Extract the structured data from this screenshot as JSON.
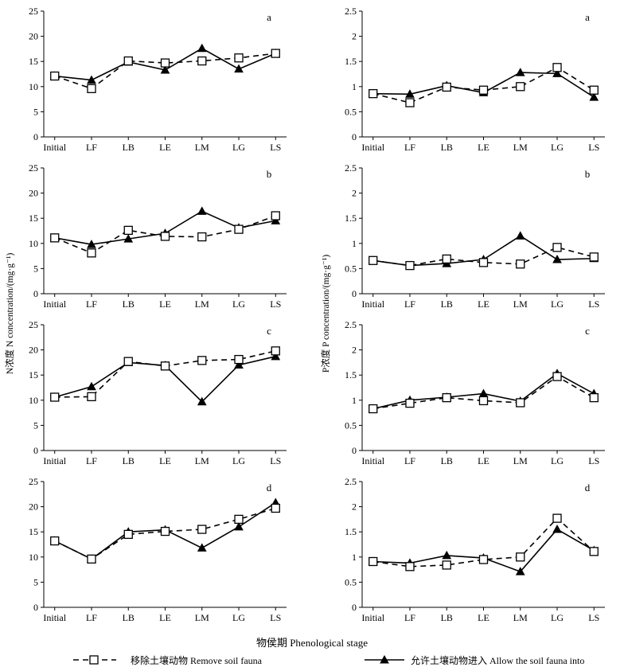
{
  "chart_data": [
    {
      "type": "line",
      "panel": "a",
      "element": "N",
      "title": "a",
      "ylim": [
        0,
        25
      ],
      "yticks": [
        0,
        5,
        10,
        15,
        20,
        25
      ],
      "categories": [
        "Initial",
        "LF",
        "LB",
        "LE",
        "LM",
        "LG",
        "LS"
      ],
      "series": [
        {
          "name": "移除土壤动物 Remove soil fauna",
          "values": [
            12.1,
            9.6,
            15.1,
            14.7,
            15.1,
            15.7,
            16.6
          ]
        },
        {
          "name": "允许土壤动物进入 Allow the soil fauna into",
          "values": [
            12.1,
            11.3,
            14.9,
            13.3,
            17.6,
            13.5,
            16.6
          ]
        }
      ]
    },
    {
      "type": "line",
      "panel": "a",
      "element": "P",
      "title": "a",
      "ylim": [
        0,
        2.5
      ],
      "yticks": [
        0,
        0.5,
        1.0,
        1.5,
        2.0,
        2.5
      ],
      "categories": [
        "Initial",
        "LF",
        "LB",
        "LE",
        "LM",
        "LG",
        "LS"
      ],
      "series": [
        {
          "name": "移除土壤动物 Remove soil fauna",
          "values": [
            0.86,
            0.68,
            0.99,
            0.93,
            1.0,
            1.38,
            0.93
          ]
        },
        {
          "name": "允许土壤动物进入 Allow the soil fauna into",
          "values": [
            0.86,
            0.85,
            1.02,
            0.88,
            1.28,
            1.26,
            0.79
          ]
        }
      ]
    },
    {
      "type": "line",
      "panel": "b",
      "element": "N",
      "title": "b",
      "ylim": [
        0,
        25
      ],
      "yticks": [
        0,
        5,
        10,
        15,
        20,
        25
      ],
      "categories": [
        "Initial",
        "LF",
        "LB",
        "LE",
        "LM",
        "LG",
        "LS"
      ],
      "series": [
        {
          "name": "移除土壤动物 Remove soil fauna",
          "values": [
            11.1,
            8.1,
            12.6,
            11.4,
            11.3,
            12.8,
            15.5
          ]
        },
        {
          "name": "允许土壤动物进入 Allow the soil fauna into",
          "values": [
            11.1,
            9.8,
            10.9,
            12.0,
            16.4,
            13.1,
            14.5
          ]
        }
      ]
    },
    {
      "type": "line",
      "panel": "b",
      "element": "P",
      "title": "b",
      "ylim": [
        0,
        2.5
      ],
      "yticks": [
        0,
        0.5,
        1.0,
        1.5,
        2.0,
        2.5
      ],
      "categories": [
        "Initial",
        "LF",
        "LB",
        "LE",
        "LM",
        "LG",
        "LS"
      ],
      "series": [
        {
          "name": "移除土壤动物 Remove soil fauna",
          "values": [
            0.66,
            0.56,
            0.69,
            0.62,
            0.59,
            0.92,
            0.73
          ]
        },
        {
          "name": "允许土壤动物进入 Allow the soil fauna into",
          "values": [
            0.66,
            0.56,
            0.6,
            0.68,
            1.15,
            0.68,
            0.7
          ]
        }
      ]
    },
    {
      "type": "line",
      "panel": "c",
      "element": "N",
      "title": "c",
      "ylim": [
        0,
        25
      ],
      "yticks": [
        0,
        5,
        10,
        15,
        20,
        25
      ],
      "categories": [
        "Initial",
        "LF",
        "LB",
        "LE",
        "LM",
        "LG",
        "LS"
      ],
      "series": [
        {
          "name": "移除土壤动物 Remove soil fauna",
          "values": [
            10.6,
            10.7,
            17.7,
            16.8,
            17.9,
            18.1,
            19.8
          ]
        },
        {
          "name": "允许土壤动物进入 Allow the soil fauna into",
          "values": [
            10.6,
            12.7,
            17.5,
            16.9,
            9.7,
            17.0,
            18.7
          ]
        }
      ]
    },
    {
      "type": "line",
      "panel": "c",
      "element": "P",
      "title": "c",
      "ylim": [
        0,
        2.5
      ],
      "yticks": [
        0,
        0.5,
        1.0,
        1.5,
        2.0,
        2.5
      ],
      "categories": [
        "Initial",
        "LF",
        "LB",
        "LE",
        "LM",
        "LG",
        "LS"
      ],
      "series": [
        {
          "name": "移除土壤动物 Remove soil fauna",
          "values": [
            0.83,
            0.94,
            1.05,
            0.99,
            0.95,
            1.47,
            1.05
          ]
        },
        {
          "name": "允许土壤动物进入 Allow the soil fauna into",
          "values": [
            0.83,
            1.0,
            1.06,
            1.13,
            0.98,
            1.53,
            1.13
          ]
        }
      ]
    },
    {
      "type": "line",
      "panel": "d",
      "element": "N",
      "title": "d",
      "ylim": [
        0,
        25
      ],
      "yticks": [
        0,
        5,
        10,
        15,
        20,
        25
      ],
      "categories": [
        "Initial",
        "LF",
        "LB",
        "LE",
        "LM",
        "LG",
        "LS"
      ],
      "series": [
        {
          "name": "移除土壤动物 Remove soil fauna",
          "values": [
            13.2,
            9.6,
            14.5,
            15.1,
            15.5,
            17.5,
            19.7
          ]
        },
        {
          "name": "允许土壤动物进入 Allow the soil fauna into",
          "values": [
            13.2,
            9.6,
            15.0,
            15.4,
            11.8,
            16.0,
            20.8
          ]
        }
      ]
    },
    {
      "type": "line",
      "panel": "d",
      "element": "P",
      "title": "d",
      "ylim": [
        0,
        2.5
      ],
      "yticks": [
        0,
        0.5,
        1.0,
        1.5,
        2.0,
        2.5
      ],
      "categories": [
        "Initial",
        "LF",
        "LB",
        "LE",
        "LM",
        "LG",
        "LS"
      ],
      "series": [
        {
          "name": "移除土壤动物 Remove soil fauna",
          "values": [
            0.91,
            0.81,
            0.84,
            0.95,
            1.0,
            1.77,
            1.11
          ]
        },
        {
          "name": "允许土壤动物进入 Allow the soil fauna into",
          "values": [
            0.91,
            0.88,
            1.03,
            0.98,
            0.71,
            1.55,
            1.13
          ]
        }
      ]
    }
  ],
  "labels": {
    "ylabel_n": "N浓度 N concentration/(mg·g⁻¹)",
    "ylabel_p": "P浓度 P concentration/(mg·g⁻¹)",
    "xlabel": "物侯期 Phenological stage"
  },
  "legend": {
    "remove": "移除土壤动物 Remove soil fauna",
    "allow": "允许土壤动物进入 Allow the soil fauna into"
  }
}
